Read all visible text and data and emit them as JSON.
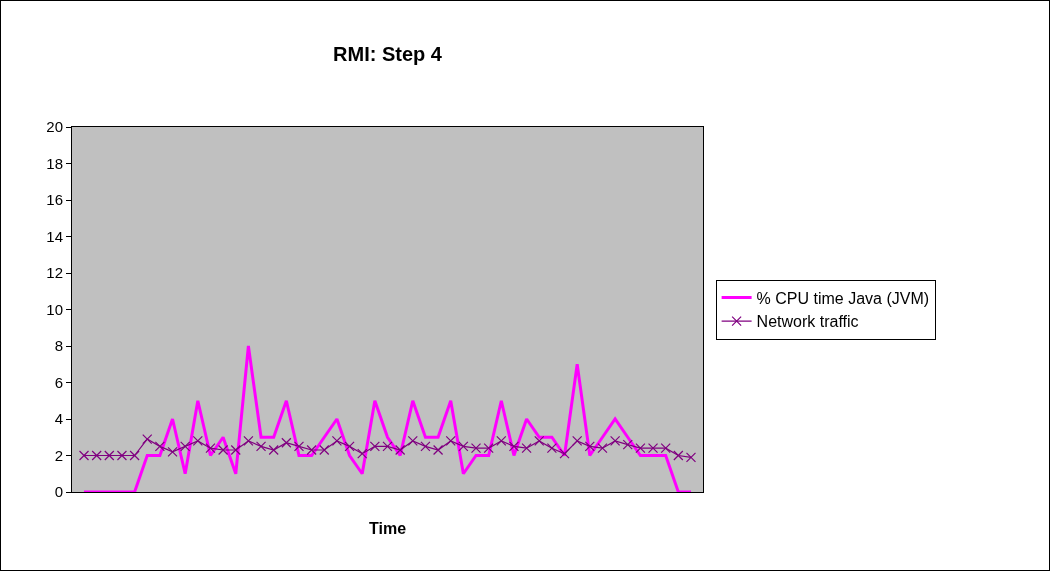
{
  "chart_data": {
    "type": "line",
    "title": "RMI: Step 4",
    "xlabel": "Time",
    "categories": [
      null,
      null,
      null,
      null,
      null,
      null,
      null,
      null,
      null,
      null,
      null,
      null,
      null,
      null,
      null,
      null,
      null,
      null,
      null,
      null,
      null,
      null,
      null,
      null,
      null,
      null,
      null,
      null,
      null,
      null,
      null,
      null,
      null,
      null,
      null,
      null,
      null,
      null,
      null,
      null,
      null,
      null,
      null,
      null,
      null,
      null,
      null,
      null,
      null
    ],
    "series": [
      {
        "name": "% CPU time Java (JVM)",
        "color": "#ff00ff",
        "marker": "none",
        "values": [
          0,
          0,
          0,
          0,
          0,
          2,
          2,
          4,
          1,
          5,
          2,
          3,
          1,
          8,
          3,
          3,
          5,
          2,
          2,
          3,
          4,
          2,
          1,
          5,
          3,
          2,
          5,
          3,
          3,
          5,
          1,
          2,
          2,
          5,
          2,
          4,
          3,
          3,
          2,
          7,
          2,
          3,
          4,
          3,
          2,
          2,
          2,
          0,
          0
        ]
      },
      {
        "name": "Network traffic",
        "color": "#800080",
        "marker": "cross",
        "values": [
          2,
          2,
          2,
          2,
          2,
          2.9,
          2.5,
          2.2,
          2.5,
          2.8,
          2.4,
          2.3,
          2.3,
          2.8,
          2.5,
          2.3,
          2.7,
          2.5,
          2.3,
          2.3,
          2.8,
          2.5,
          2.1,
          2.5,
          2.5,
          2.3,
          2.8,
          2.5,
          2.3,
          2.8,
          2.5,
          2.4,
          2.4,
          2.8,
          2.5,
          2.4,
          2.8,
          2.4,
          2.1,
          2.8,
          2.5,
          2.4,
          2.8,
          2.6,
          2.4,
          2.4,
          2.4,
          2.0,
          1.9
        ]
      }
    ],
    "ylim": [
      0,
      20
    ],
    "yticks": [
      0,
      2,
      4,
      6,
      8,
      10,
      12,
      14,
      16,
      18,
      20
    ],
    "grid": false,
    "legend": "right",
    "tick_labels": "y"
  }
}
